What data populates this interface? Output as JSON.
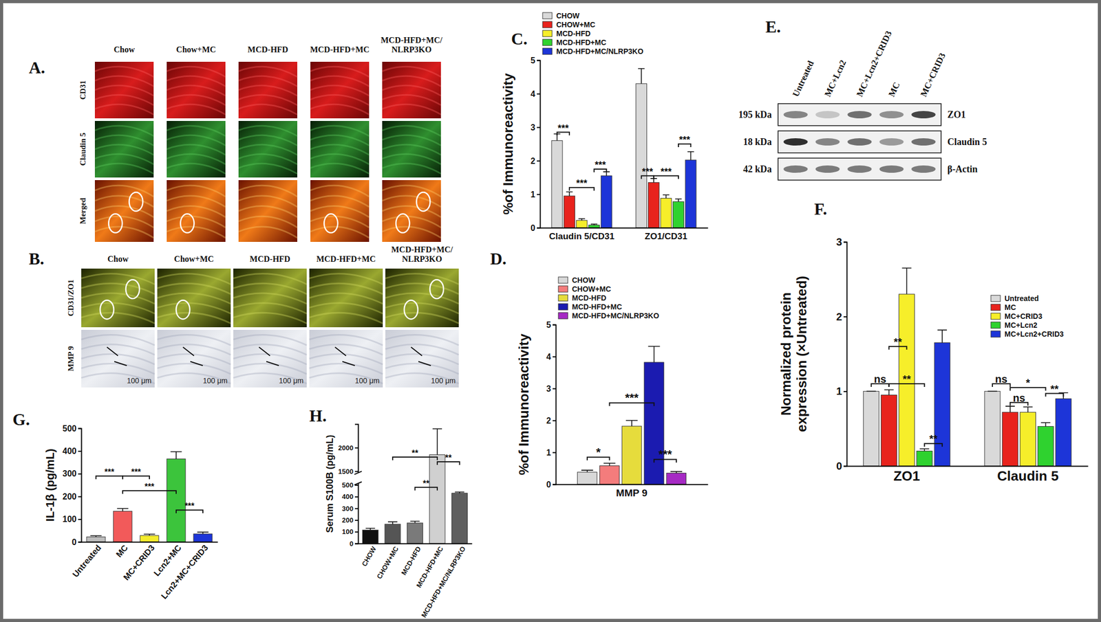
{
  "chart_data": [
    {
      "panel": "C.",
      "type": "bar",
      "categories": [
        "Claudin 5/CD31",
        "ZO1/CD31"
      ],
      "series": [
        {
          "name": "CHOW",
          "color": "#d9d9d9",
          "values": [
            2.6,
            4.3
          ],
          "errors": [
            0.2,
            0.45
          ]
        },
        {
          "name": "CHOW+MC",
          "color": "#e8231d",
          "values": [
            0.95,
            1.35
          ],
          "errors": [
            0.12,
            0.12
          ]
        },
        {
          "name": "MCD-HFD",
          "color": "#f6ee2a",
          "values": [
            0.22,
            0.88
          ],
          "errors": [
            0.05,
            0.1
          ]
        },
        {
          "name": "MCD-HFD+MC",
          "color": "#2fd22f",
          "values": [
            0.08,
            0.78
          ],
          "errors": [
            0.03,
            0.08
          ]
        },
        {
          "name": "MCD-HFD+MC/NLRP3KO",
          "color": "#1d35d8",
          "values": [
            1.55,
            2.02
          ],
          "errors": [
            0.12,
            0.25
          ]
        }
      ],
      "ylabel": "%of Immunoreactivity",
      "ylim": [
        0,
        5
      ],
      "yticks": [
        0,
        1,
        2,
        3,
        4,
        5
      ],
      "legend": "top",
      "annotations": [
        {
          "text": "***",
          "from": [
            0,
            0
          ],
          "to": [
            0,
            1
          ],
          "y": 2.85
        },
        {
          "text": "***",
          "from": [
            0,
            1
          ],
          "to": [
            0,
            3
          ],
          "y": 1.2
        },
        {
          "text": "***",
          "from": [
            0,
            3
          ],
          "to": [
            0,
            4
          ],
          "y": 1.75
        },
        {
          "text": "***",
          "from": [
            1,
            0
          ],
          "to": [
            1,
            1
          ],
          "y": 1.55
        },
        {
          "text": "***",
          "from": [
            1,
            1
          ],
          "to": [
            1,
            3
          ],
          "y": 1.55
        },
        {
          "text": "***",
          "from": [
            1,
            3
          ],
          "to": [
            1,
            4
          ],
          "y": 2.5
        }
      ]
    },
    {
      "panel": "D.",
      "type": "bar",
      "categories": [
        "MMP 9"
      ],
      "series": [
        {
          "name": "CHOW",
          "color": "#d8d8d8",
          "values": [
            0.38
          ],
          "errors": [
            0.06
          ]
        },
        {
          "name": "CHOW+MC",
          "color": "#f47c7c",
          "values": [
            0.58
          ],
          "errors": [
            0.08
          ]
        },
        {
          "name": "MCD-HFD",
          "color": "#e6dc3c",
          "values": [
            1.82
          ],
          "errors": [
            0.18
          ]
        },
        {
          "name": "MCD-HFD+MC",
          "color": "#1b1bb0",
          "values": [
            3.82
          ],
          "errors": [
            0.5
          ]
        },
        {
          "name": "MCD-HFD+MC/NLRP3KO",
          "color": "#a62ac4",
          "values": [
            0.35
          ],
          "errors": [
            0.05
          ]
        }
      ],
      "ylabel": "%of Immunoreactivity",
      "ylim": [
        0,
        5
      ],
      "yticks": [
        0,
        1,
        2,
        3,
        4,
        5
      ],
      "legend": "top",
      "annotations": [
        {
          "text": "*",
          "from": [
            0,
            0
          ],
          "to": [
            0,
            1
          ],
          "y": 0.85
        },
        {
          "text": "***",
          "from": [
            0,
            1
          ],
          "to": [
            0,
            3
          ],
          "y": 2.55
        },
        {
          "text": "***",
          "from": [
            0,
            3
          ],
          "to": [
            0,
            4
          ],
          "y": 0.78
        }
      ]
    },
    {
      "panel": "F.",
      "type": "bar",
      "categories": [
        "ZO1",
        "Claudin 5"
      ],
      "series": [
        {
          "name": "Untreated",
          "color": "#d9d9d9",
          "values": [
            1.0,
            1.0
          ],
          "errors": [
            0,
            0
          ]
        },
        {
          "name": "MC",
          "color": "#e8231d",
          "values": [
            0.95,
            0.72
          ],
          "errors": [
            0.07,
            0.08
          ]
        },
        {
          "name": "MC+CRID3",
          "color": "#f6ee2a",
          "values": [
            2.3,
            0.72
          ],
          "errors": [
            0.35,
            0.07
          ]
        },
        {
          "name": "MC+Lcn2",
          "color": "#2fd22f",
          "values": [
            0.2,
            0.53
          ],
          "errors": [
            0.03,
            0.05
          ]
        },
        {
          "name": "MC+Lcn2+CRID3",
          "color": "#1d35d8",
          "values": [
            1.65,
            0.9
          ],
          "errors": [
            0.17,
            0.08
          ]
        }
      ],
      "ylabel": "Normalized protein expression (×Untreated)",
      "ylim": [
        0,
        3
      ],
      "yticks": [
        0,
        1,
        2,
        3
      ],
      "legend": "upper right",
      "annotations": [
        {
          "text": "ns",
          "from": [
            0,
            0
          ],
          "to": [
            0,
            1
          ],
          "y": 1.1
        },
        {
          "text": "**",
          "from": [
            0,
            1
          ],
          "to": [
            0,
            2
          ],
          "y": 1.6
        },
        {
          "text": "**",
          "from": [
            0,
            1
          ],
          "to": [
            0,
            3
          ],
          "y": 1.1
        },
        {
          "text": "**",
          "from": [
            0,
            3
          ],
          "to": [
            0,
            4
          ],
          "y": 0.3
        },
        {
          "text": "ns",
          "from": [
            1,
            0
          ],
          "to": [
            1,
            1
          ],
          "y": 1.1
        },
        {
          "text": "ns",
          "from": [
            1,
            1
          ],
          "to": [
            1,
            2
          ],
          "y": 0.85
        },
        {
          "text": "*",
          "from": [
            1,
            1
          ],
          "to": [
            1,
            3
          ],
          "y": 1.05
        },
        {
          "text": "**",
          "from": [
            1,
            3
          ],
          "to": [
            1,
            4
          ],
          "y": 0.97
        }
      ]
    },
    {
      "panel": "G.",
      "type": "bar",
      "categories": [
        "Untreated",
        "MC",
        "MC+CRID3",
        "Lcn2+MC",
        "Lcn2+MC+CRID3"
      ],
      "values": [
        22,
        135,
        28,
        365,
        35
      ],
      "errors": [
        5,
        12,
        6,
        32,
        8
      ],
      "colors": [
        "#bdbdbd",
        "#f25a5a",
        "#f4ec2c",
        "#3cc43c",
        "#1d35d8"
      ],
      "ylabel": "IL-1β (pg/mL)",
      "ylim": [
        0,
        500
      ],
      "yticks": [
        0,
        100,
        200,
        300,
        400,
        500
      ],
      "annotations": [
        {
          "text": "***",
          "from": 0,
          "to": 1,
          "y": 290
        },
        {
          "text": "***",
          "from": 1,
          "to": 2,
          "y": 290
        },
        {
          "text": "***",
          "from": 1,
          "to": 3,
          "y": 225
        },
        {
          "text": "***",
          "from": 3,
          "to": 4,
          "y": 140
        }
      ]
    },
    {
      "panel": "H.",
      "type": "bar",
      "categories": [
        "CHOW",
        "CHOW+MC",
        "MCD-HFD",
        "MCD-HFD+MC",
        "MCD-HFD+MC/NLRP3KO"
      ],
      "values": [
        115,
        165,
        175,
        1850,
        430
      ],
      "errors": [
        15,
        20,
        15,
        550,
        10
      ],
      "colors": [
        "#111111",
        "#555555",
        "#7a7a7a",
        "#d0d0d0",
        "#5e5e5e"
      ],
      "ylabel": "Serum S100B (pg/mL)",
      "ylim": [
        0,
        2500
      ],
      "ybreak": [
        500,
        1500
      ],
      "yticks": [
        0,
        100,
        200,
        300,
        400,
        500,
        1500,
        2000
      ],
      "annotations": [
        {
          "text": "**",
          "from": 1,
          "to": 3,
          "y": 1800
        },
        {
          "text": "**",
          "from": 2,
          "to": 3,
          "y": 480
        },
        {
          "text": "**",
          "from": 3,
          "to": 4,
          "y": 1700
        }
      ]
    }
  ],
  "figure_panels": {
    "A": {
      "panel": "A.",
      "columns": [
        "Chow",
        "Chow+MC",
        "MCD-HFD",
        "MCD-HFD+MC",
        "MCD-HFD+MC/NLRP3KO"
      ],
      "rows": [
        "CD31",
        "Claudin 5",
        "Merged"
      ]
    },
    "B": {
      "panel": "B.",
      "columns": [
        "Chow",
        "Chow+MC",
        "MCD-HFD",
        "MCD-HFD+MC",
        "MCD-HFD+MC/NLRP3KO"
      ],
      "rows": [
        "CD31/ZO1",
        "MMP 9"
      ],
      "scale_bar": "100 μm"
    },
    "E": {
      "panel": "E.",
      "lanes": [
        "Untreated",
        "MC+Lcn2",
        "MC+Lcn2+CRID3",
        "MC",
        "MC+CRID3"
      ],
      "blots": [
        {
          "size": "195 kDa",
          "protein": "ZO1",
          "intensity": [
            0.5,
            0.2,
            0.6,
            0.45,
            0.8
          ]
        },
        {
          "size": "18 kDa",
          "protein": "Claudin 5",
          "intensity": [
            0.9,
            0.5,
            0.6,
            0.4,
            0.6
          ]
        },
        {
          "size": "42 kDa",
          "protein": "β-Actin",
          "intensity": [
            0.55,
            0.55,
            0.55,
            0.55,
            0.55
          ]
        }
      ]
    }
  }
}
